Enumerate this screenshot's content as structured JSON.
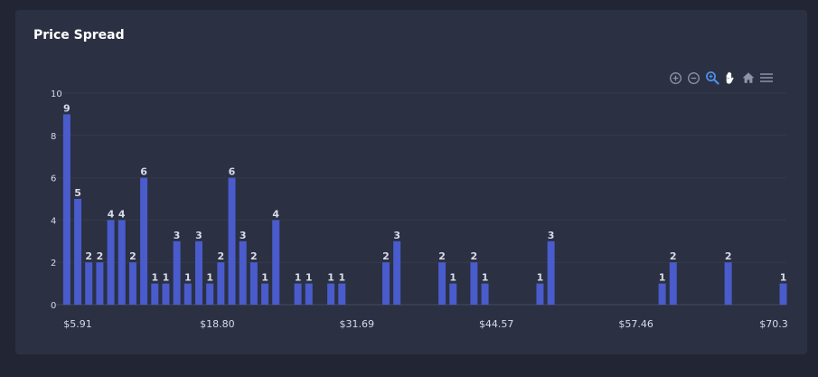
{
  "card": {
    "title": "Price Spread"
  },
  "toolbar": {
    "icons": [
      "zoom-in-icon",
      "zoom-out-icon",
      "zoom-select-icon",
      "pan-hand-icon",
      "home-reset-icon",
      "menu-icon"
    ],
    "active_color": "#4d8fe8",
    "icon_color": "#8d93a8"
  },
  "chart_data": {
    "type": "bar",
    "title": "Price Spread",
    "bar_color": "#4a5bcc",
    "x_ticks": [
      "$5.91",
      "$18.80",
      "$31.69",
      "$44.57",
      "$57.46",
      "$70.3"
    ],
    "x_range": [
      5.91,
      70.3
    ],
    "ylim": [
      0,
      10
    ],
    "y_ticks": [
      0,
      2,
      4,
      6,
      8,
      10
    ],
    "grid": true,
    "data_labels": true,
    "bars": [
      {
        "x": 5.9,
        "y": 9
      },
      {
        "x": 6.9,
        "y": 5
      },
      {
        "x": 7.9,
        "y": 2
      },
      {
        "x": 8.9,
        "y": 2
      },
      {
        "x": 9.9,
        "y": 4
      },
      {
        "x": 10.9,
        "y": 4
      },
      {
        "x": 11.9,
        "y": 2
      },
      {
        "x": 12.9,
        "y": 6
      },
      {
        "x": 13.9,
        "y": 1
      },
      {
        "x": 14.9,
        "y": 1
      },
      {
        "x": 15.9,
        "y": 3
      },
      {
        "x": 16.9,
        "y": 1
      },
      {
        "x": 17.9,
        "y": 3
      },
      {
        "x": 18.9,
        "y": 1
      },
      {
        "x": 19.9,
        "y": 2
      },
      {
        "x": 20.9,
        "y": 6
      },
      {
        "x": 21.9,
        "y": 3
      },
      {
        "x": 22.9,
        "y": 2
      },
      {
        "x": 23.9,
        "y": 1
      },
      {
        "x": 24.9,
        "y": 4
      },
      {
        "x": 26.9,
        "y": 1
      },
      {
        "x": 27.9,
        "y": 1
      },
      {
        "x": 29.9,
        "y": 1
      },
      {
        "x": 30.9,
        "y": 1
      },
      {
        "x": 34.9,
        "y": 2
      },
      {
        "x": 35.9,
        "y": 3
      },
      {
        "x": 40.0,
        "y": 2
      },
      {
        "x": 41.0,
        "y": 1
      },
      {
        "x": 42.9,
        "y": 2
      },
      {
        "x": 43.9,
        "y": 1
      },
      {
        "x": 48.9,
        "y": 1
      },
      {
        "x": 49.9,
        "y": 3
      },
      {
        "x": 60.0,
        "y": 1
      },
      {
        "x": 61.0,
        "y": 2
      },
      {
        "x": 66.0,
        "y": 2
      },
      {
        "x": 71.0,
        "y": 1
      }
    ]
  }
}
